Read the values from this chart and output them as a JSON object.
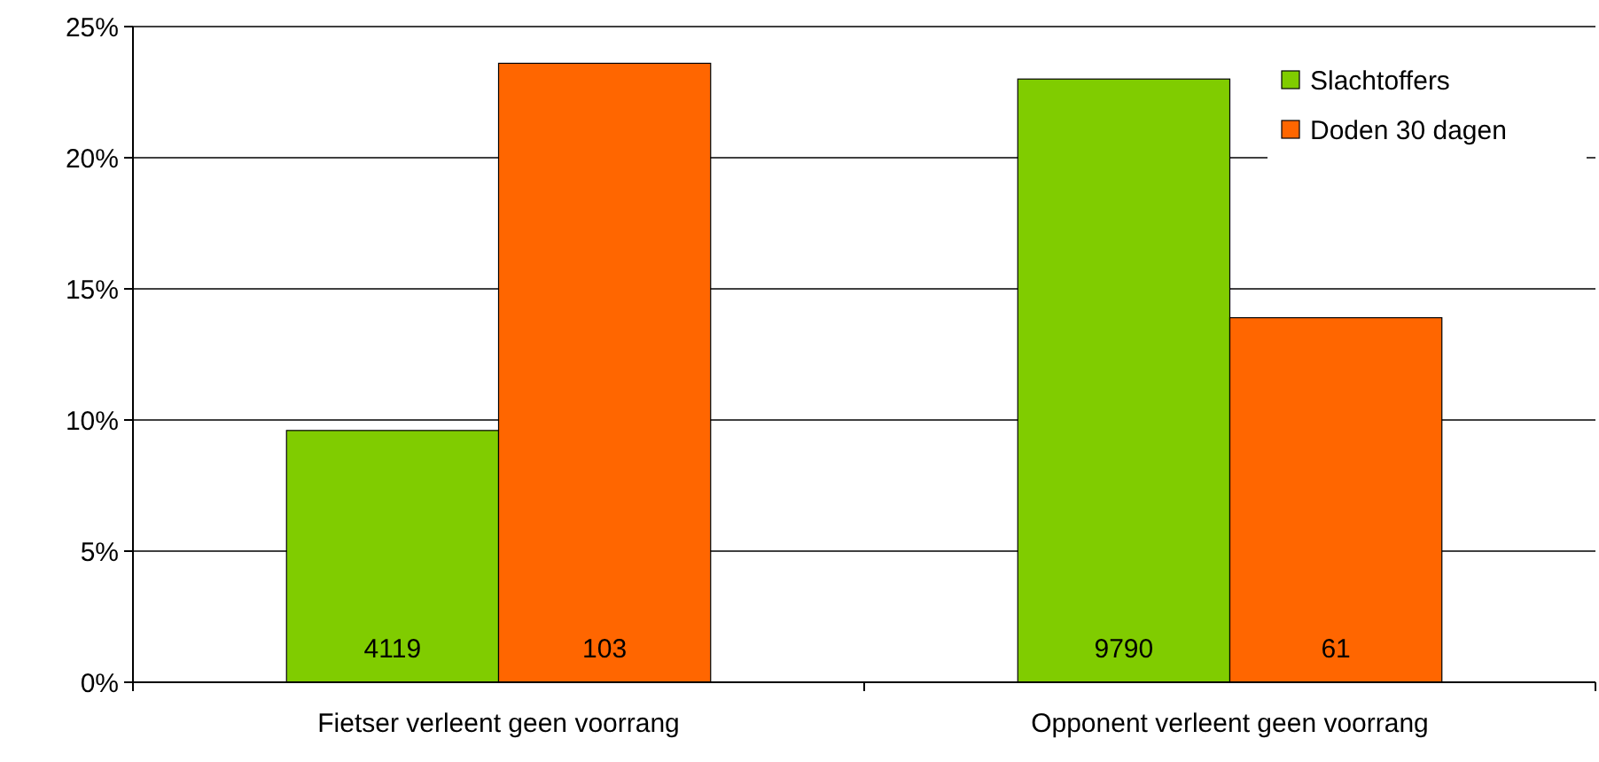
{
  "chart_data": {
    "type": "bar",
    "categories": [
      "Fietser verleent geen voorrang",
      "Opponent verleent geen voorrang"
    ],
    "series": [
      {
        "name": "Slachtoffers",
        "color": "#80cc00",
        "values": [
          9.6,
          23.0
        ]
      },
      {
        "name": "Doden 30 dagen",
        "color": "#ff6600",
        "values": [
          23.6,
          13.9
        ]
      }
    ],
    "annotations": [
      "4119",
      "103",
      "9790",
      "61"
    ],
    "ylim": [
      0,
      25
    ],
    "yticks": [
      {
        "value": 0,
        "label": "0%"
      },
      {
        "value": 5,
        "label": "5%"
      },
      {
        "value": 10,
        "label": "10%"
      },
      {
        "value": 15,
        "label": "15%"
      },
      {
        "value": 20,
        "label": "20%"
      },
      {
        "value": 25,
        "label": "25%"
      }
    ],
    "grid": "y",
    "legend": "top right"
  }
}
